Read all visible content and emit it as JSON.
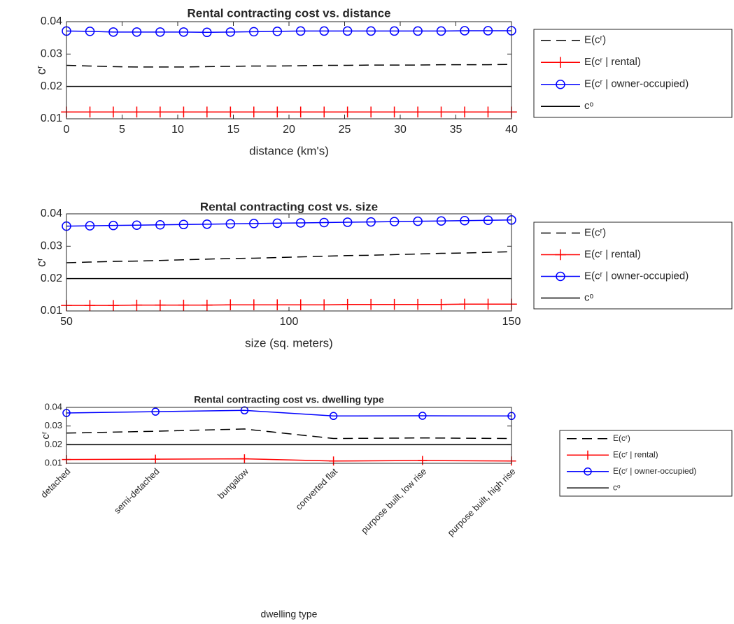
{
  "chart_data": [
    {
      "type": "line",
      "title": "Rental contracting cost vs. distance",
      "xlabel": "distance (km's)",
      "ylabel": "cʳ",
      "x": [
        0,
        2.11,
        4.21,
        6.32,
        8.42,
        10.53,
        12.63,
        14.74,
        16.84,
        18.95,
        21.05,
        23.16,
        25.26,
        27.37,
        29.47,
        31.58,
        33.68,
        35.79,
        37.89,
        40
      ],
      "xlim": [
        0,
        40
      ],
      "xticks": [
        0,
        5,
        10,
        15,
        20,
        25,
        30,
        35,
        40
      ],
      "ylim": [
        0.01,
        0.04
      ],
      "yticks": [
        0.01,
        0.02,
        0.03,
        0.04
      ],
      "legend": "outside-right",
      "series": [
        {
          "name": "E(cʳ)",
          "color": "#000000",
          "line_style": "dashed",
          "marker": "none",
          "values": [
            0.0265,
            0.0263,
            0.0261,
            0.026,
            0.026,
            0.026,
            0.0261,
            0.0262,
            0.0263,
            0.0263,
            0.0264,
            0.0265,
            0.0265,
            0.0266,
            0.0266,
            0.0266,
            0.0267,
            0.0267,
            0.0267,
            0.0268
          ]
        },
        {
          "name": "E(cʳ | rental)",
          "color": "#ff0000",
          "line_style": "solid",
          "marker": "plus",
          "values": [
            0.0121,
            0.0121,
            0.0121,
            0.0121,
            0.0121,
            0.0121,
            0.0121,
            0.0121,
            0.0121,
            0.0121,
            0.0121,
            0.0121,
            0.0121,
            0.0121,
            0.0121,
            0.0121,
            0.0121,
            0.0121,
            0.0121,
            0.0121
          ]
        },
        {
          "name": "E(cʳ | owner-occupied)",
          "color": "#0000ff",
          "line_style": "solid",
          "marker": "circle",
          "values": [
            0.0371,
            0.037,
            0.0368,
            0.0368,
            0.0368,
            0.0368,
            0.0367,
            0.0368,
            0.0369,
            0.037,
            0.0371,
            0.0371,
            0.0371,
            0.0371,
            0.0371,
            0.0371,
            0.0371,
            0.0372,
            0.0372,
            0.0372
          ]
        },
        {
          "name": "cᵒ",
          "color": "#000000",
          "line_style": "solid",
          "marker": "none",
          "values": [
            0.02,
            0.02,
            0.02,
            0.02,
            0.02,
            0.02,
            0.02,
            0.02,
            0.02,
            0.02,
            0.02,
            0.02,
            0.02,
            0.02,
            0.02,
            0.02,
            0.02,
            0.02,
            0.02,
            0.02
          ]
        }
      ]
    },
    {
      "type": "line",
      "title": "Rental contracting cost vs. size",
      "xlabel": "size (sq. meters)",
      "ylabel": "cʳ",
      "x": [
        50,
        55.26,
        60.53,
        65.79,
        71.05,
        76.32,
        81.58,
        86.84,
        92.11,
        97.37,
        102.63,
        107.89,
        113.16,
        118.42,
        123.68,
        128.95,
        134.21,
        139.47,
        144.74,
        150
      ],
      "xlim": [
        50,
        150
      ],
      "xticks": [
        50,
        100,
        150
      ],
      "ylim": [
        0.01,
        0.04
      ],
      "yticks": [
        0.01,
        0.02,
        0.03,
        0.04
      ],
      "legend": "outside-right",
      "series": [
        {
          "name": "E(cʳ)",
          "color": "#000000",
          "line_style": "dashed",
          "marker": "none",
          "values": [
            0.0249,
            0.0251,
            0.0253,
            0.0254,
            0.0256,
            0.0258,
            0.026,
            0.0262,
            0.0263,
            0.0265,
            0.0267,
            0.0269,
            0.0271,
            0.0272,
            0.0274,
            0.0276,
            0.0278,
            0.0279,
            0.0281,
            0.0283
          ]
        },
        {
          "name": "E(cʳ | rental)",
          "color": "#ff0000",
          "line_style": "solid",
          "marker": "plus",
          "values": [
            0.0117,
            0.0117,
            0.0117,
            0.0118,
            0.0118,
            0.0118,
            0.0118,
            0.0119,
            0.0119,
            0.0119,
            0.0119,
            0.0119,
            0.012,
            0.012,
            0.012,
            0.012,
            0.012,
            0.0121,
            0.0121,
            0.0121
          ]
        },
        {
          "name": "E(cʳ | owner-occupied)",
          "color": "#0000ff",
          "line_style": "solid",
          "marker": "circle",
          "values": [
            0.0362,
            0.0363,
            0.0364,
            0.0365,
            0.0366,
            0.0367,
            0.0368,
            0.0369,
            0.037,
            0.0371,
            0.0372,
            0.0373,
            0.0374,
            0.0375,
            0.0376,
            0.0377,
            0.0378,
            0.0379,
            0.038,
            0.0381
          ]
        },
        {
          "name": "cᵒ",
          "color": "#000000",
          "line_style": "solid",
          "marker": "none",
          "values": [
            0.02,
            0.02,
            0.02,
            0.02,
            0.02,
            0.02,
            0.02,
            0.02,
            0.02,
            0.02,
            0.02,
            0.02,
            0.02,
            0.02,
            0.02,
            0.02,
            0.02,
            0.02,
            0.02,
            0.02
          ]
        }
      ]
    },
    {
      "type": "line",
      "title": "Rental contracting cost vs. dwelling type",
      "xlabel": "dwelling type",
      "ylabel": "cʳ",
      "categories": [
        "detached",
        "semi-detached",
        "bungalow",
        "converted flat",
        "purpose built, low rise",
        "purpose built, high rise"
      ],
      "ylim": [
        0.01,
        0.04
      ],
      "yticks": [
        0.01,
        0.02,
        0.03,
        0.04
      ],
      "legend": "outside-right",
      "series": [
        {
          "name": "E(cʳ)",
          "color": "#000000",
          "line_style": "dashed",
          "marker": "none",
          "values": [
            0.0262,
            0.0272,
            0.0284,
            0.0233,
            0.0236,
            0.0233
          ]
        },
        {
          "name": "E(cʳ | rental)",
          "color": "#ff0000",
          "line_style": "solid",
          "marker": "plus",
          "values": [
            0.012,
            0.0122,
            0.0124,
            0.0112,
            0.0115,
            0.0112
          ]
        },
        {
          "name": "E(cʳ | owner-occupied)",
          "color": "#0000ff",
          "line_style": "solid",
          "marker": "circle",
          "values": [
            0.037,
            0.0377,
            0.0384,
            0.0354,
            0.0355,
            0.0354
          ]
        },
        {
          "name": "cᵒ",
          "color": "#000000",
          "line_style": "solid",
          "marker": "none",
          "values": [
            0.02,
            0.02,
            0.02,
            0.02,
            0.02,
            0.02
          ]
        }
      ]
    }
  ]
}
